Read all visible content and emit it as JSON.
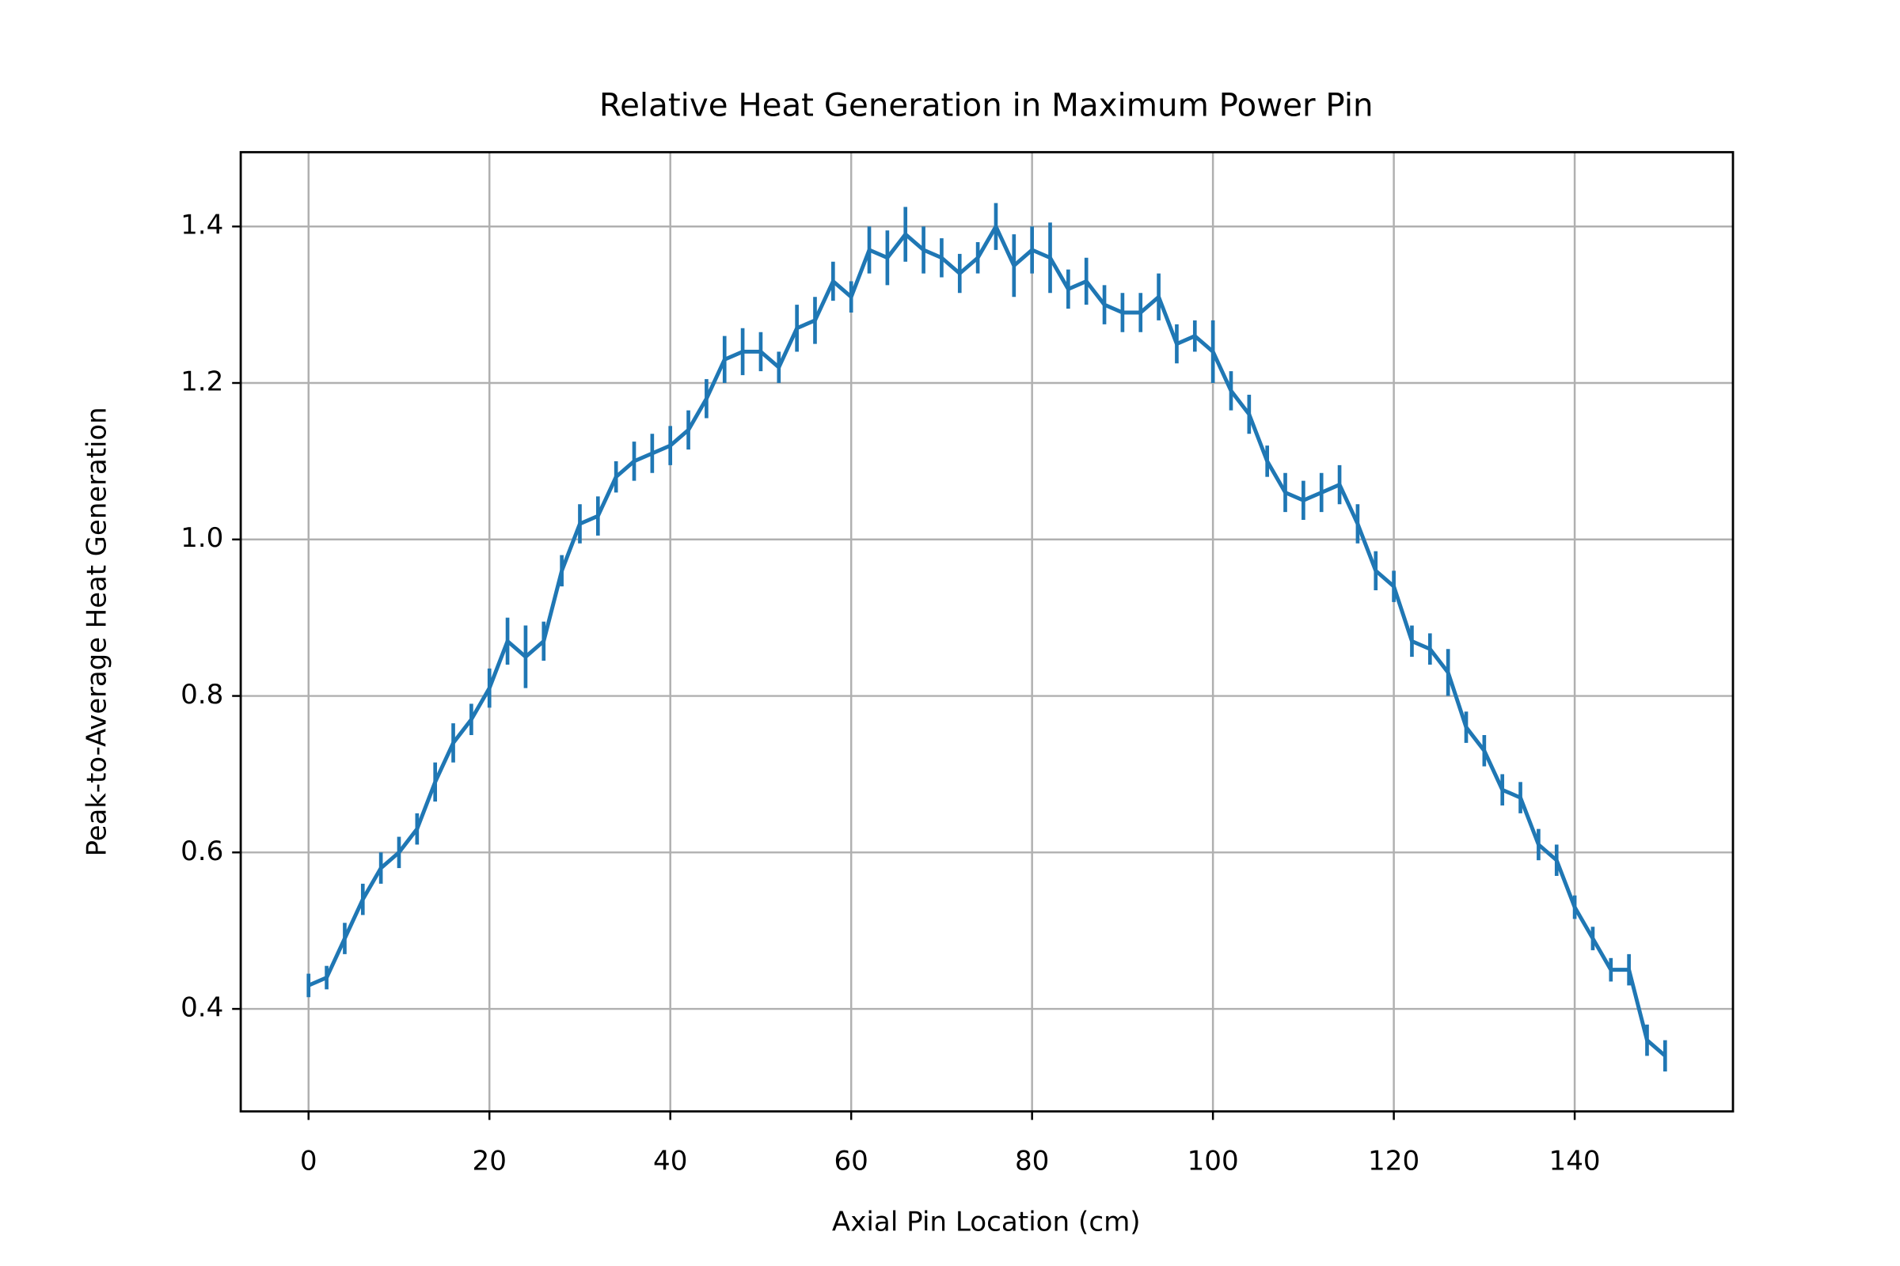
{
  "chart_data": {
    "type": "line",
    "title": "Relative Heat Generation in Maximum Power Pin",
    "x_label": "Axial Pin Location (cm)",
    "y_label": "Peak-to-Average Heat Generation",
    "x": [
      0,
      2,
      4,
      6,
      8,
      10,
      12,
      14,
      16,
      18,
      20,
      22,
      24,
      26,
      28,
      30,
      32,
      34,
      36,
      38,
      40,
      42,
      44,
      46,
      48,
      50,
      52,
      54,
      56,
      58,
      60,
      62,
      64,
      66,
      68,
      70,
      72,
      74,
      76,
      78,
      80,
      82,
      84,
      86,
      88,
      90,
      92,
      94,
      96,
      98,
      100,
      102,
      104,
      106,
      108,
      110,
      112,
      114,
      116,
      118,
      120,
      122,
      124,
      126,
      128,
      130,
      132,
      134,
      136,
      138,
      140,
      142,
      144,
      146,
      148,
      150
    ],
    "series": [
      {
        "name": "Peak-to-Average Heat Generation",
        "color": "#1f77b4",
        "values": [
          0.43,
          0.44,
          0.49,
          0.54,
          0.58,
          0.6,
          0.63,
          0.69,
          0.74,
          0.77,
          0.81,
          0.87,
          0.85,
          0.87,
          0.96,
          1.02,
          1.03,
          1.08,
          1.1,
          1.11,
          1.12,
          1.14,
          1.18,
          1.23,
          1.24,
          1.24,
          1.22,
          1.27,
          1.28,
          1.33,
          1.31,
          1.37,
          1.36,
          1.39,
          1.37,
          1.36,
          1.34,
          1.36,
          1.4,
          1.35,
          1.37,
          1.36,
          1.32,
          1.33,
          1.3,
          1.29,
          1.29,
          1.31,
          1.25,
          1.26,
          1.24,
          1.19,
          1.16,
          1.1,
          1.06,
          1.05,
          1.06,
          1.07,
          1.02,
          0.96,
          0.94,
          0.87,
          0.86,
          0.83,
          0.76,
          0.73,
          0.68,
          0.67,
          0.61,
          0.59,
          0.53,
          0.49,
          0.45,
          0.45,
          0.36,
          0.34
        ],
        "errors": [
          0.015,
          0.015,
          0.02,
          0.02,
          0.02,
          0.02,
          0.02,
          0.025,
          0.025,
          0.02,
          0.025,
          0.03,
          0.04,
          0.025,
          0.02,
          0.025,
          0.025,
          0.02,
          0.025,
          0.025,
          0.025,
          0.025,
          0.025,
          0.03,
          0.03,
          0.025,
          0.02,
          0.03,
          0.03,
          0.025,
          0.02,
          0.03,
          0.035,
          0.035,
          0.03,
          0.025,
          0.025,
          0.02,
          0.03,
          0.04,
          0.03,
          0.045,
          0.025,
          0.03,
          0.025,
          0.025,
          0.025,
          0.03,
          0.025,
          0.02,
          0.04,
          0.025,
          0.025,
          0.02,
          0.025,
          0.025,
          0.025,
          0.025,
          0.025,
          0.025,
          0.02,
          0.02,
          0.02,
          0.03,
          0.02,
          0.02,
          0.02,
          0.02,
          0.02,
          0.02,
          0.015,
          0.015,
          0.015,
          0.02,
          0.02,
          0.02
        ]
      }
    ],
    "xlim": [
      -7.5,
      157.5
    ],
    "ylim": [
      0.269,
      1.495
    ],
    "xticks": [
      0,
      20,
      40,
      60,
      80,
      100,
      120,
      140
    ],
    "yticks": [
      {
        "value": 0.4,
        "label": "0.4"
      },
      {
        "value": 0.6,
        "label": "0.6"
      },
      {
        "value": 0.8,
        "label": "0.8"
      },
      {
        "value": 1.0,
        "label": "1.0"
      },
      {
        "value": 1.2,
        "label": "1.2"
      },
      {
        "value": 1.4,
        "label": "1.4"
      }
    ],
    "grid": true
  }
}
